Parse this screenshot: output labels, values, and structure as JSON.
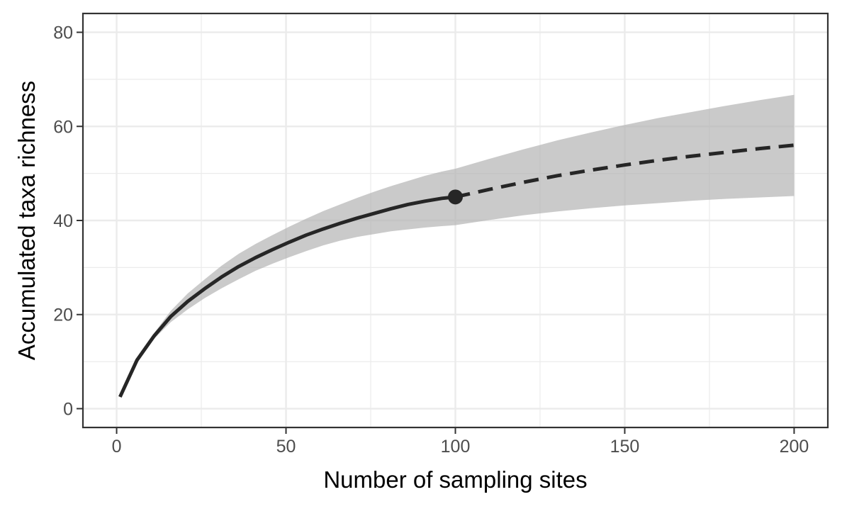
{
  "chart_data": {
    "type": "line",
    "title": "",
    "xlabel": "Number of sampling sites",
    "ylabel": "Accumulated taxa richness",
    "xlim": [
      -9.95,
      209.95
    ],
    "ylim": [
      -4,
      84
    ],
    "x_ticks": [
      0,
      50,
      100,
      150,
      200
    ],
    "x_tick_labels": [
      "0",
      "50",
      "100",
      "150",
      "200"
    ],
    "y_ticks": [
      0,
      20,
      40,
      60,
      80
    ],
    "y_tick_labels": [
      "0",
      "20",
      "40",
      "60",
      "80"
    ],
    "grid": true,
    "legend": "none",
    "colors": {
      "line": "#262626",
      "ribbon": "#b3b3b3",
      "grid": "#ebebeb",
      "panel_border": "#333333",
      "tick_text": "#4d4d4d"
    },
    "series": [
      {
        "role": "interpolated",
        "line_style": "solid",
        "x": [
          1,
          6,
          11,
          16,
          21,
          26,
          31,
          36,
          41,
          46,
          51,
          56,
          61,
          66,
          71,
          76,
          81,
          86,
          91,
          96,
          100
        ],
        "y": [
          2.5,
          10.3,
          15.4,
          19.6,
          22.8,
          25.5,
          28.0,
          30.2,
          32.1,
          33.8,
          35.4,
          36.9,
          38.2,
          39.4,
          40.5,
          41.5,
          42.5,
          43.4,
          44.1,
          44.7,
          45.0
        ],
        "lower": [
          2.5,
          10.0,
          14.8,
          18.4,
          21.1,
          23.5,
          25.6,
          27.5,
          29.3,
          30.8,
          32.2,
          33.5,
          34.7,
          35.7,
          36.5,
          37.1,
          37.7,
          38.1,
          38.5,
          38.8,
          39.0
        ],
        "upper": [
          2.5,
          10.6,
          16.0,
          20.8,
          24.5,
          27.5,
          30.4,
          32.9,
          35.0,
          36.9,
          38.7,
          40.4,
          42.0,
          43.4,
          44.8,
          46.1,
          47.3,
          48.4,
          49.5,
          50.4,
          51.0
        ]
      },
      {
        "role": "extrapolated",
        "line_style": "dashed",
        "x": [
          100,
          110,
          120,
          130,
          140,
          150,
          160,
          170,
          180,
          190,
          200
        ],
        "y": [
          45.0,
          46.6,
          48.1,
          49.5,
          50.7,
          51.8,
          52.8,
          53.7,
          54.5,
          55.3,
          56.0
        ],
        "lower": [
          39.0,
          40.1,
          41.1,
          41.9,
          42.6,
          43.2,
          43.7,
          44.2,
          44.6,
          44.9,
          45.2
        ],
        "upper": [
          51.0,
          53.1,
          55.1,
          57.0,
          58.7,
          60.3,
          61.8,
          63.1,
          64.4,
          65.6,
          66.7
        ]
      }
    ],
    "reference_point": {
      "x": 100,
      "y": 45
    }
  }
}
